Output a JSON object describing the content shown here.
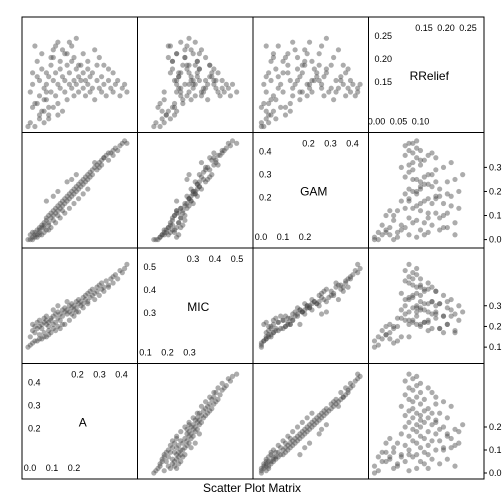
{
  "chart_data": {
    "type": "scatter",
    "title": "Scatter Plot Matrix",
    "variables": [
      {
        "name": "A",
        "range": [
          0.0,
          0.45
        ],
        "ticks_a": [
          "0.0",
          "0.1",
          "0.2"
        ],
        "ticks_b": [
          "0.2",
          "0.3",
          "0.4"
        ]
      },
      {
        "name": "MIC",
        "range": [
          0.05,
          0.55
        ],
        "ticks_a": [
          "0.1",
          "0.2",
          "0.3"
        ],
        "ticks_b": [
          "0.3",
          "0.4",
          "0.5"
        ]
      },
      {
        "name": "GAM",
        "range": [
          -0.01,
          0.42
        ],
        "ticks_a": [
          "0.0",
          "0.1",
          "0.2"
        ],
        "ticks_b": [
          "0.2",
          "0.3",
          "0.4"
        ]
      },
      {
        "name": "RRelief",
        "range": [
          0.0,
          0.27
        ],
        "ticks_a": [
          "0.00",
          "0.05",
          "0.10"
        ],
        "ticks_b": [
          "0.15",
          "0.20",
          "0.25"
        ]
      }
    ],
    "y_axis_ticks": {
      "A": [
        "0.0",
        "0.1",
        "0.2"
      ],
      "MIC": [
        "0.1",
        "0.2",
        "0.3"
      ],
      "GAM": [
        "0.0",
        "0.1",
        "0.2",
        "0.3"
      ],
      "RRelief": [
        "0.00",
        "0.05",
        "0.10",
        "0.15",
        "0.20",
        "0.25"
      ]
    },
    "y_axis_tick_values": {
      "A": [
        0.0,
        0.1,
        0.2
      ],
      "MIC": [
        0.1,
        0.2,
        0.3
      ],
      "GAM": [
        0.0,
        0.1,
        0.2,
        0.3
      ],
      "RRelief": [
        0.0,
        0.05,
        0.1,
        0.15,
        0.2,
        0.25
      ]
    },
    "points": [
      [
        0.01,
        0.15,
        0.02,
        0.09
      ],
      [
        0.02,
        0.18,
        0.03,
        0.14
      ],
      [
        0.02,
        0.21,
        0.01,
        0.11
      ],
      [
        0.03,
        0.17,
        0.02,
        0.21
      ],
      [
        0.03,
        0.2,
        0.03,
        0.06
      ],
      [
        0.04,
        0.19,
        0.04,
        0.17
      ],
      [
        0.04,
        0.22,
        0.02,
        0.13
      ],
      [
        0.05,
        0.23,
        0.05,
        0.08
      ],
      [
        0.05,
        0.2,
        0.04,
        0.12
      ],
      [
        0.06,
        0.19,
        0.06,
        0.15
      ],
      [
        0.06,
        0.21,
        0.05,
        0.19
      ],
      [
        0.07,
        0.22,
        0.07,
        0.1
      ],
      [
        0.07,
        0.24,
        0.06,
        0.07
      ],
      [
        0.08,
        0.23,
        0.09,
        0.14
      ],
      [
        0.08,
        0.25,
        0.08,
        0.11
      ],
      [
        0.09,
        0.2,
        0.1,
        0.05
      ],
      [
        0.09,
        0.22,
        0.07,
        0.13
      ],
      [
        0.1,
        0.24,
        0.11,
        0.16
      ],
      [
        0.1,
        0.23,
        0.09,
        0.09
      ],
      [
        0.11,
        0.21,
        0.12,
        0.12
      ],
      [
        0.11,
        0.25,
        0.1,
        0.18
      ],
      [
        0.12,
        0.26,
        0.13,
        0.08
      ],
      [
        0.12,
        0.22,
        0.11,
        0.14
      ],
      [
        0.13,
        0.27,
        0.14,
        0.11
      ],
      [
        0.13,
        0.24,
        0.12,
        0.06
      ],
      [
        0.14,
        0.26,
        0.15,
        0.15
      ],
      [
        0.14,
        0.23,
        0.13,
        0.1
      ],
      [
        0.15,
        0.28,
        0.16,
        0.13
      ],
      [
        0.15,
        0.25,
        0.14,
        0.2
      ],
      [
        0.16,
        0.27,
        0.17,
        0.09
      ],
      [
        0.16,
        0.29,
        0.15,
        0.12
      ],
      [
        0.17,
        0.26,
        0.18,
        0.16
      ],
      [
        0.17,
        0.28,
        0.16,
        0.07
      ],
      [
        0.18,
        0.3,
        0.19,
        0.11
      ],
      [
        0.18,
        0.27,
        0.17,
        0.14
      ],
      [
        0.19,
        0.29,
        0.2,
        0.1
      ],
      [
        0.19,
        0.31,
        0.18,
        0.17
      ],
      [
        0.2,
        0.28,
        0.21,
        0.12
      ],
      [
        0.2,
        0.3,
        0.19,
        0.08
      ],
      [
        0.21,
        0.32,
        0.22,
        0.15
      ],
      [
        0.21,
        0.29,
        0.2,
        0.11
      ],
      [
        0.22,
        0.31,
        0.23,
        0.13
      ],
      [
        0.22,
        0.33,
        0.21,
        0.09
      ],
      [
        0.23,
        0.3,
        0.24,
        0.16
      ],
      [
        0.23,
        0.32,
        0.22,
        0.12
      ],
      [
        0.24,
        0.34,
        0.25,
        0.1
      ],
      [
        0.24,
        0.31,
        0.23,
        0.14
      ],
      [
        0.25,
        0.33,
        0.26,
        0.08
      ],
      [
        0.25,
        0.35,
        0.24,
        0.12
      ],
      [
        0.26,
        0.32,
        0.27,
        0.15
      ],
      [
        0.26,
        0.36,
        0.25,
        0.11
      ],
      [
        0.27,
        0.34,
        0.28,
        0.09
      ],
      [
        0.27,
        0.37,
        0.26,
        0.13
      ],
      [
        0.28,
        0.35,
        0.29,
        0.1
      ],
      [
        0.28,
        0.38,
        0.27,
        0.14
      ],
      [
        0.29,
        0.36,
        0.3,
        0.07
      ],
      [
        0.3,
        0.39,
        0.31,
        0.12
      ],
      [
        0.3,
        0.37,
        0.29,
        0.16
      ],
      [
        0.31,
        0.4,
        0.32,
        0.1
      ],
      [
        0.32,
        0.38,
        0.33,
        0.13
      ],
      [
        0.32,
        0.41,
        0.31,
        0.09
      ],
      [
        0.33,
        0.39,
        0.34,
        0.11
      ],
      [
        0.34,
        0.42,
        0.35,
        0.08
      ],
      [
        0.35,
        0.4,
        0.33,
        0.12
      ],
      [
        0.36,
        0.43,
        0.36,
        0.1
      ],
      [
        0.37,
        0.44,
        0.37,
        0.09
      ],
      [
        0.38,
        0.45,
        0.38,
        0.11
      ],
      [
        0.4,
        0.47,
        0.39,
        0.08
      ],
      [
        0.05,
        0.16,
        0.03,
        0.03
      ],
      [
        0.07,
        0.17,
        0.05,
        0.04
      ],
      [
        0.09,
        0.18,
        0.06,
        0.02
      ],
      [
        0.11,
        0.19,
        0.08,
        0.05
      ],
      [
        0.13,
        0.2,
        0.1,
        0.03
      ],
      [
        0.15,
        0.21,
        0.12,
        0.04
      ],
      [
        0.02,
        0.12,
        0.0,
        0.05
      ],
      [
        0.04,
        0.13,
        0.01,
        0.06
      ],
      [
        0.06,
        0.14,
        0.02,
        0.04
      ],
      [
        0.08,
        0.15,
        0.04,
        0.07
      ],
      [
        0.1,
        0.17,
        0.05,
        0.18
      ],
      [
        0.12,
        0.18,
        0.07,
        0.21
      ],
      [
        0.14,
        0.19,
        0.09,
        0.17
      ],
      [
        0.16,
        0.21,
        0.11,
        0.19
      ],
      [
        0.18,
        0.23,
        0.13,
        0.22
      ],
      [
        0.2,
        0.25,
        0.15,
        0.18
      ],
      [
        0.22,
        0.27,
        0.17,
        0.16
      ],
      [
        0.24,
        0.29,
        0.19,
        0.19
      ],
      [
        0.26,
        0.31,
        0.21,
        0.17
      ],
      [
        0.0,
        0.1,
        0.0,
        0.0
      ],
      [
        0.01,
        0.11,
        0.0,
        0.01
      ],
      [
        0.03,
        0.13,
        0.01,
        0.0
      ],
      [
        0.05,
        0.14,
        0.02,
        0.02
      ],
      [
        0.07,
        0.15,
        0.03,
        0.01
      ],
      [
        0.09,
        0.16,
        0.04,
        0.03
      ],
      [
        0.29,
        0.33,
        0.32,
        0.2
      ],
      [
        0.31,
        0.35,
        0.3,
        0.18
      ],
      [
        0.33,
        0.37,
        0.34,
        0.16
      ],
      [
        0.35,
        0.39,
        0.36,
        0.15
      ],
      [
        0.37,
        0.41,
        0.35,
        0.14
      ],
      [
        0.39,
        0.43,
        0.37,
        0.12
      ],
      [
        0.41,
        0.46,
        0.4,
        0.1
      ],
      [
        0.42,
        0.48,
        0.41,
        0.11
      ],
      [
        0.43,
        0.5,
        0.4,
        0.09
      ],
      [
        0.19,
        0.26,
        0.25,
        0.21
      ],
      [
        0.21,
        0.27,
        0.27,
        0.23
      ],
      [
        0.11,
        0.28,
        0.18,
        0.2
      ],
      [
        0.13,
        0.3,
        0.2,
        0.22
      ],
      [
        0.17,
        0.32,
        0.24,
        0.19
      ],
      [
        0.08,
        0.21,
        0.16,
        0.09
      ]
    ],
    "grid": false,
    "legend": "none"
  }
}
